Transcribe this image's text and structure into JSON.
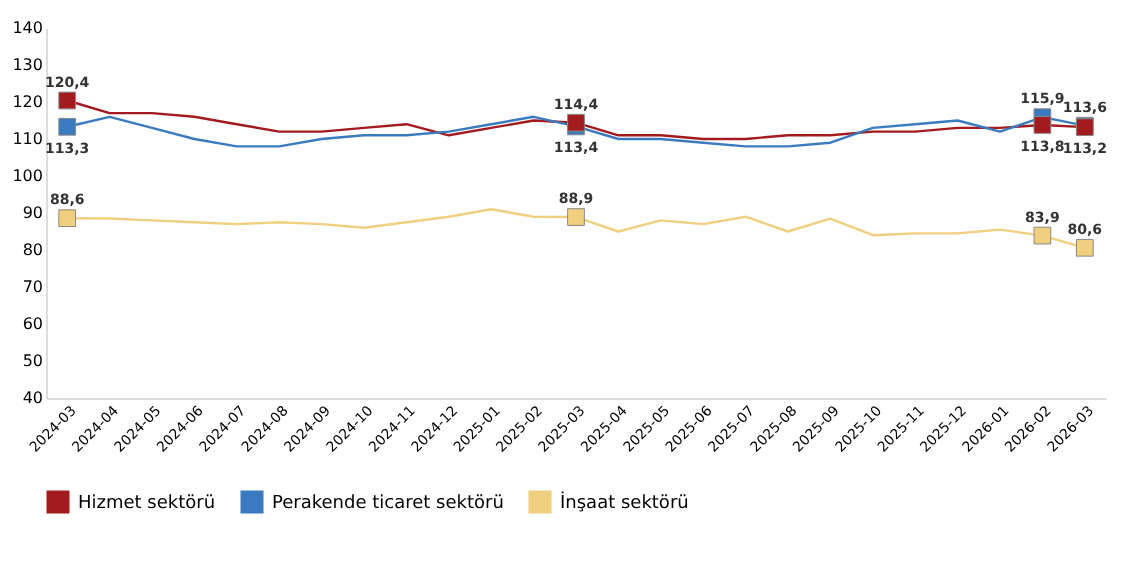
{
  "chart_data": {
    "type": "line",
    "categories": [
      "2024-03",
      "2024-04",
      "2024-05",
      "2024-06",
      "2024-07",
      "2024-08",
      "2024-09",
      "2024-10",
      "2024-11",
      "2024-12",
      "2025-01",
      "2025-02",
      "2025-03",
      "2025-04",
      "2025-05",
      "2025-06",
      "2025-07",
      "2025-08",
      "2025-09",
      "2025-10",
      "2025-11",
      "2025-12",
      "2026-01",
      "2026-02",
      "2026-03"
    ],
    "series": [
      {
        "name": "Hizmet sektörü",
        "color": "#a31a1f",
        "values": [
          120.4,
          117,
          117,
          116,
          114,
          112,
          112,
          113,
          114,
          111,
          113,
          115,
          114.4,
          111,
          111,
          110,
          110,
          111,
          111,
          112,
          112,
          113,
          113,
          113.8,
          113.2
        ],
        "value_labels": [
          "120,4",
          null,
          null,
          null,
          null,
          null,
          null,
          null,
          null,
          null,
          null,
          null,
          "114,4",
          null,
          null,
          null,
          null,
          null,
          null,
          null,
          null,
          null,
          null,
          "113,8",
          "113,2"
        ]
      },
      {
        "name": "Perakende ticaret sektörü",
        "color": "#3a7bbf",
        "values": [
          113.3,
          116,
          113,
          110,
          108,
          108,
          110,
          111,
          111,
          112,
          114,
          116,
          113.4,
          110,
          110,
          109,
          108,
          108,
          109,
          113,
          114,
          115,
          112,
          115.9,
          113.6
        ],
        "value_labels": [
          "113,3",
          null,
          null,
          null,
          null,
          null,
          null,
          null,
          null,
          null,
          null,
          null,
          "113,4",
          null,
          null,
          null,
          null,
          null,
          null,
          null,
          null,
          null,
          null,
          "115,9",
          "113,6"
        ]
      },
      {
        "name": "İnşaat sektörü",
        "color": "#f0cf7f",
        "values": [
          88.6,
          88.5,
          88,
          87.5,
          87,
          87.5,
          87,
          86,
          87.5,
          89,
          91,
          89,
          88.9,
          85,
          88,
          87,
          89,
          85,
          88.5,
          84,
          84.5,
          84.5,
          85.5,
          83.9,
          80.6
        ],
        "value_labels": [
          "88,6",
          null,
          null,
          null,
          null,
          null,
          null,
          null,
          null,
          null,
          null,
          null,
          "88,9",
          null,
          null,
          null,
          null,
          null,
          null,
          null,
          null,
          null,
          null,
          "83,9",
          "80,6"
        ]
      }
    ],
    "ylim": [
      40,
      140
    ],
    "yticks": [
      40,
      50,
      60,
      70,
      80,
      90,
      100,
      110,
      120,
      130,
      140
    ],
    "grid": false,
    "legend": "bottom",
    "line_style": "solid"
  }
}
